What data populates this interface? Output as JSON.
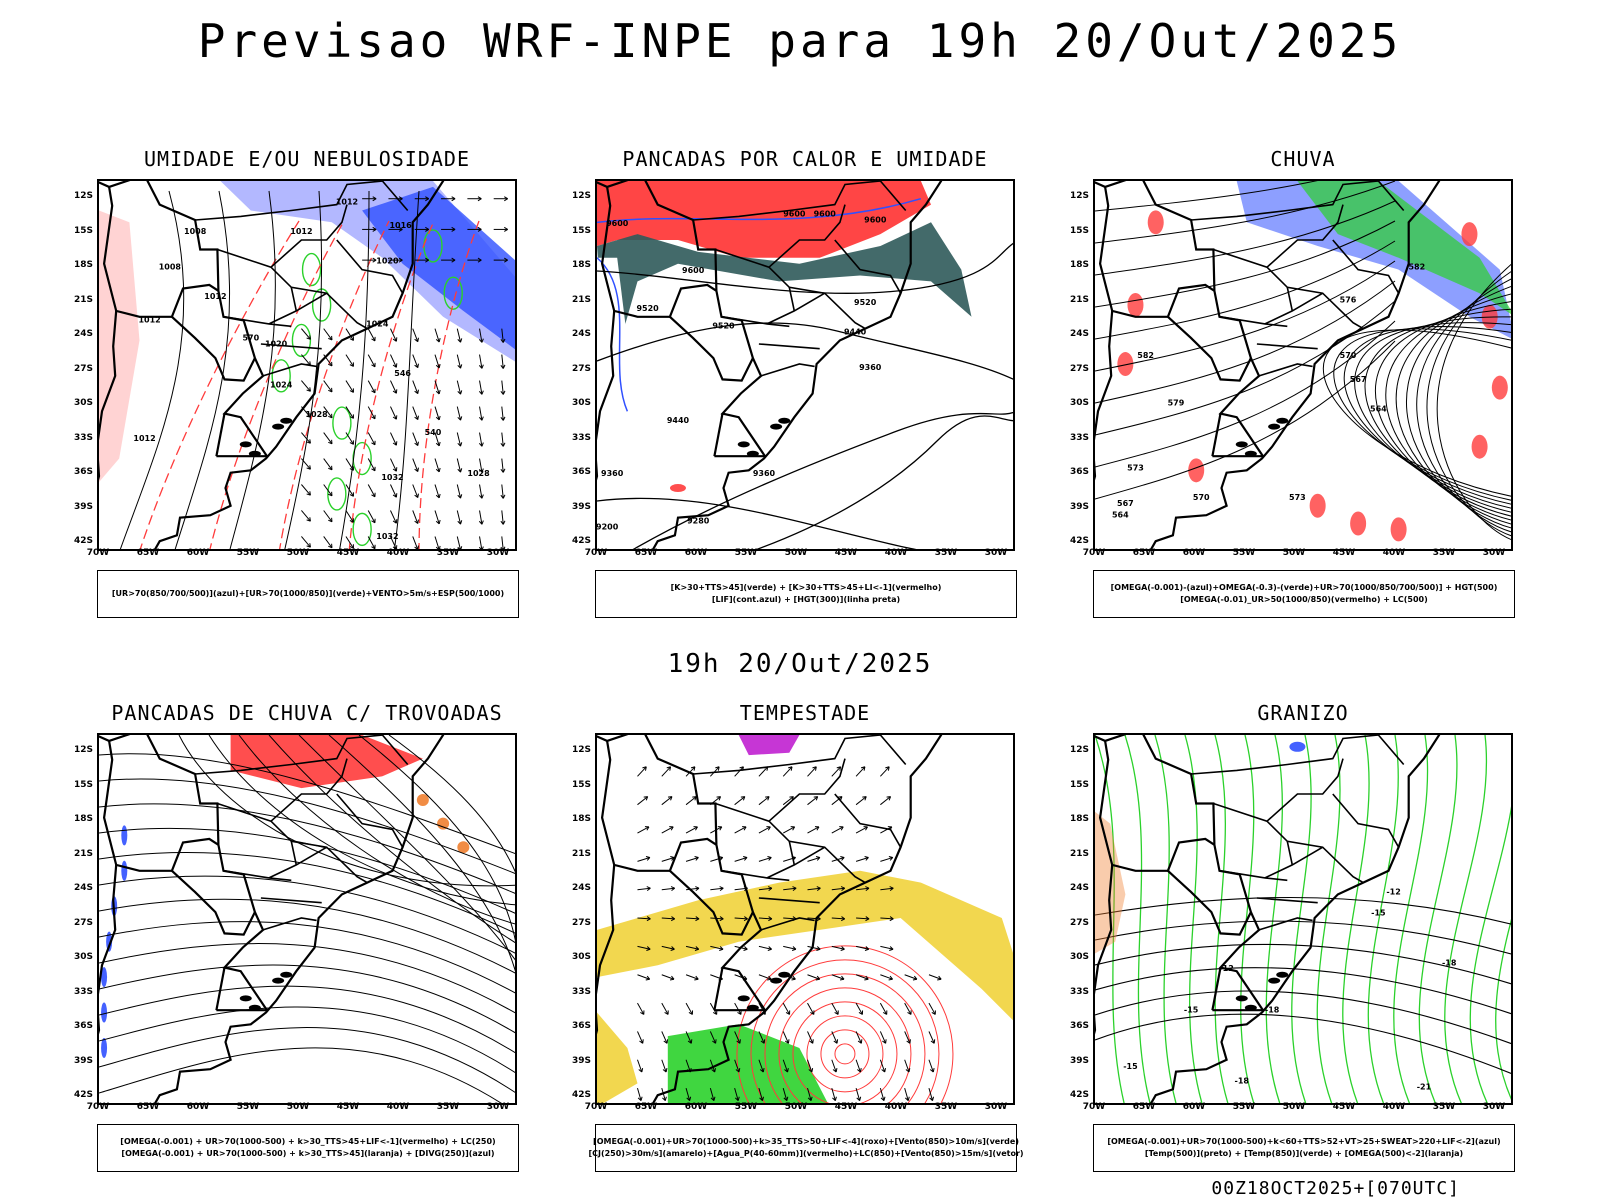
{
  "header": {
    "title": "Previsao WRF-INPE  para 19h 20/Out/2025",
    "mid_date": "19h 20/Out/2025",
    "footer": "00Z18OCT2025+[070UTC]"
  },
  "colors": {
    "blue": "#3050ff",
    "light_blue": "#9aa0ff",
    "green": "#2bd12b",
    "red": "#ff3b3b",
    "dark_teal": "#2f5a5a",
    "yellow": "#f0d030",
    "purple": "#c020d0",
    "orange": "#f08030"
  },
  "chart_data": [
    {
      "type": "map",
      "title": "UMIDADE E/OU NEBULOSIDADE",
      "legend": [
        "[UR>70(850/700/500)](azul)+[UR>70(1000/850)](verde)+VENTO>5m/s+ESP(500/1000)"
      ],
      "lat_ticks": [
        "12S",
        "15S",
        "18S",
        "21S",
        "24S",
        "27S",
        "30S",
        "33S",
        "36S",
        "39S",
        "42S"
      ],
      "lon_ticks": [
        "70W",
        "65W",
        "60W",
        "55W",
        "50W",
        "45W",
        "40W",
        "35W",
        "30W"
      ],
      "contour_labels": [
        {
          "text": "1012",
          "lon": -45.5,
          "lat": -12.5
        },
        {
          "text": "1016",
          "lon": -40.2,
          "lat": -14.5
        },
        {
          "text": "1008",
          "lon": -60.5,
          "lat": -15.0
        },
        {
          "text": "1012",
          "lon": -50.0,
          "lat": -15.0
        },
        {
          "text": "1008",
          "lon": -63.0,
          "lat": -18.0
        },
        {
          "text": "1020",
          "lon": -41.5,
          "lat": -17.5
        },
        {
          "text": "1012",
          "lon": -58.5,
          "lat": -20.5
        },
        {
          "text": "1012",
          "lon": -65.0,
          "lat": -22.5
        },
        {
          "text": "1024",
          "lon": -42.5,
          "lat": -22.8
        },
        {
          "text": "1020",
          "lon": -52.5,
          "lat": -24.5
        },
        {
          "text": "1024",
          "lon": -52.0,
          "lat": -28.0
        },
        {
          "text": "1028",
          "lon": -48.5,
          "lat": -30.5
        },
        {
          "text": "1012",
          "lon": -65.5,
          "lat": -32.5
        },
        {
          "text": "1032",
          "lon": -41.0,
          "lat": -35.8
        },
        {
          "text": "1028",
          "lon": -32.5,
          "lat": -35.5
        },
        {
          "text": "1032",
          "lon": -41.5,
          "lat": -40.8
        },
        {
          "text": "570",
          "lon": -55.0,
          "lat": -24.0
        },
        {
          "text": "546",
          "lon": -40.0,
          "lat": -27.0
        },
        {
          "text": "540",
          "lon": -37.0,
          "lat": -32.0
        }
      ]
    },
    {
      "type": "map",
      "title": "PANCADAS POR CALOR E UMIDADE",
      "legend": [
        "[K>30+TTS>45](verde) + [K>30+TTS>45+LI<-1](vermelho)",
        "[LIF](cont.azul) + [HGT(300)](linha preta)"
      ],
      "lat_ticks": [
        "12S",
        "15S",
        "18S",
        "21S",
        "24S",
        "27S",
        "30S",
        "33S",
        "36S",
        "39S",
        "42S"
      ],
      "lon_ticks": [
        "70W",
        "65W",
        "60W",
        "55W",
        "50W",
        "45W",
        "40W",
        "35W",
        "30W"
      ],
      "contour_labels": [
        {
          "text": "9600",
          "lon": -68.0,
          "lat": -14.3
        },
        {
          "text": "9600",
          "lon": -50.5,
          "lat": -13.5
        },
        {
          "text": "9600",
          "lon": -47.5,
          "lat": -13.5
        },
        {
          "text": "9600",
          "lon": -42.5,
          "lat": -14.0
        },
        {
          "text": "9600",
          "lon": -60.5,
          "lat": -18.3
        },
        {
          "text": "9520",
          "lon": -65.0,
          "lat": -21.5
        },
        {
          "text": "9520",
          "lon": -57.5,
          "lat": -23.0
        },
        {
          "text": "9520",
          "lon": -43.5,
          "lat": -21.0
        },
        {
          "text": "9440",
          "lon": -44.5,
          "lat": -23.5
        },
        {
          "text": "9360",
          "lon": -43.0,
          "lat": -26.5
        },
        {
          "text": "9440",
          "lon": -62.0,
          "lat": -31.0
        },
        {
          "text": "9360",
          "lon": -53.5,
          "lat": -35.5
        },
        {
          "text": "9360",
          "lon": -68.5,
          "lat": -35.5
        },
        {
          "text": "9280",
          "lon": -60.0,
          "lat": -39.5
        },
        {
          "text": "9200",
          "lon": -69.0,
          "lat": -40.0
        }
      ]
    },
    {
      "type": "map",
      "title": "CHUVA",
      "legend": [
        "[OMEGA(-0.001)-(azul)+OMEGA(-0.3)-(verde)+UR>70(1000/850/700/500)] + HGT(500)",
        "[OMEGA(-0.01)_UR>50(1000/850)(vermelho) + LC(500)"
      ],
      "lat_ticks": [
        "12S",
        "15S",
        "18S",
        "21S",
        "24S",
        "27S",
        "30S",
        "33S",
        "36S",
        "39S",
        "42S"
      ],
      "lon_ticks": [
        "70W",
        "65W",
        "60W",
        "55W",
        "50W",
        "45W",
        "40W",
        "35W",
        "30W"
      ],
      "contour_labels": [
        {
          "text": "582",
          "lon": -38.2,
          "lat": -18.0
        },
        {
          "text": "576",
          "lon": -45.0,
          "lat": -20.8
        },
        {
          "text": "570",
          "lon": -45.0,
          "lat": -25.5
        },
        {
          "text": "567",
          "lon": -44.0,
          "lat": -27.5
        },
        {
          "text": "564",
          "lon": -42.0,
          "lat": -30.0
        },
        {
          "text": "582",
          "lon": -65.0,
          "lat": -25.5
        },
        {
          "text": "579",
          "lon": -62.0,
          "lat": -29.5
        },
        {
          "text": "573",
          "lon": -66.0,
          "lat": -35.0
        },
        {
          "text": "570",
          "lon": -59.5,
          "lat": -37.5
        },
        {
          "text": "567",
          "lon": -67.0,
          "lat": -38.0
        },
        {
          "text": "564",
          "lon": -67.5,
          "lat": -39.0
        },
        {
          "text": "573",
          "lon": -50.0,
          "lat": -37.5
        }
      ]
    },
    {
      "type": "map",
      "title": "PANCADAS DE CHUVA C/ TROVOADAS",
      "legend": [
        "[OMEGA(-0.001) + UR>70(1000-500) + k>30_TTS>45+LIF<-1](vermelho) + LC(250)",
        "[OMEGA(-0.001) + UR>70(1000-500) + k>30_TTS>45](laranja) + [DIVG(250)](azul)"
      ],
      "lat_ticks": [
        "12S",
        "15S",
        "18S",
        "21S",
        "24S",
        "27S",
        "30S",
        "33S",
        "36S",
        "39S",
        "42S"
      ],
      "lon_ticks": [
        "70W",
        "65W",
        "60W",
        "55W",
        "50W",
        "45W",
        "40W",
        "35W",
        "30W"
      ],
      "contour_labels": []
    },
    {
      "type": "map",
      "title": "TEMPESTADE",
      "legend": [
        "[OMEGA(-0.001)+UR>70(1000-500)+k>35_TTS>50+LIF<-4](roxo)+[Vento(850)>10m/s](verde)",
        "[CJ(250)>30m/s](amarelo)+[Agua_P(40-60mm)](vermelho)+LC(850)+[Vento(850)>15m/s](vetor)"
      ],
      "lat_ticks": [
        "12S",
        "15S",
        "18S",
        "21S",
        "24S",
        "27S",
        "30S",
        "33S",
        "36S",
        "39S",
        "42S"
      ],
      "lon_ticks": [
        "70W",
        "65W",
        "60W",
        "55W",
        "50W",
        "45W",
        "40W",
        "35W",
        "30W"
      ],
      "contour_labels": []
    },
    {
      "type": "map",
      "title": "GRANIZO",
      "legend": [
        "[OMEGA(-0.001)+UR>70(1000-500)+k<60+TTS>52+VT>25+SWEAT>220+LIF<-2](azul)",
        "[Temp(500)](preto) + [Temp(850)](verde) + [OMEGA(500)<-2](laranja)"
      ],
      "lat_ticks": [
        "12S",
        "15S",
        "18S",
        "21S",
        "24S",
        "27S",
        "30S",
        "33S",
        "36S",
        "39S",
        "42S"
      ],
      "lon_ticks": [
        "70W",
        "65W",
        "60W",
        "55W",
        "50W",
        "45W",
        "40W",
        "35W",
        "30W"
      ],
      "contour_labels": [
        {
          "text": "-12",
          "lon": -40.5,
          "lat": -24.0
        },
        {
          "text": "-15",
          "lon": -42.0,
          "lat": -25.8
        },
        {
          "text": "-18",
          "lon": -35.0,
          "lat": -30.0
        },
        {
          "text": "-12",
          "lon": -57.0,
          "lat": -30.5
        },
        {
          "text": "-15",
          "lon": -60.5,
          "lat": -34.0
        },
        {
          "text": "-18",
          "lon": -52.5,
          "lat": -34.0
        },
        {
          "text": "-15",
          "lon": -66.5,
          "lat": -38.8
        },
        {
          "text": "-18",
          "lon": -55.5,
          "lat": -40.0
        },
        {
          "text": "-21",
          "lon": -37.5,
          "lat": -40.5
        }
      ]
    }
  ]
}
